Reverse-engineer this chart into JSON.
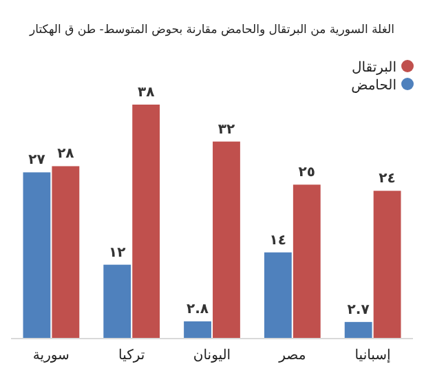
{
  "chart_data": {
    "type": "bar",
    "title": "الغلة السورية من البرتقال والحامض مقارنة بحوض المتوسط- طن ق الهكتار",
    "categories": [
      "سورية",
      "تركيا",
      "اليونان",
      "مصر",
      "إسبانيا"
    ],
    "series": [
      {
        "name": "الحامض",
        "color": "#4f81bd",
        "values": [
          27,
          12,
          2.8,
          14,
          2.7
        ],
        "value_labels": [
          "٢٧",
          "١٢",
          "٢.٨",
          "١٤",
          "٢.٧"
        ]
      },
      {
        "name": "البرتقال",
        "color": "#c0504d",
        "values": [
          28,
          38,
          32,
          25,
          24
        ],
        "value_labels": [
          "٢٨",
          "٣٨",
          "٣٢",
          "٢٥",
          "٢٤"
        ]
      }
    ],
    "tick_labels": "x",
    "legend": "top right"
  }
}
